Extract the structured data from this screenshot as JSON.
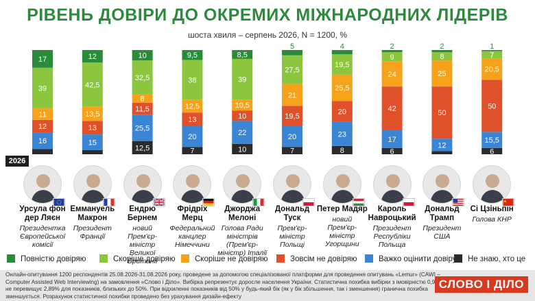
{
  "header": {
    "title": "РІВЕНЬ ДОВІРИ ДО ОКРЕМИХ МІЖНАРОДНИХ ЛІДЕРІВ",
    "subtitle": "шоста хвиля – серпень 2026, N = 1200, %",
    "year_badge": "2026"
  },
  "chart_data": {
    "type": "bar",
    "stacked": true,
    "ylim": [
      0,
      100
    ],
    "categories": [
      "Урсула фон дер Ляєн",
      "Еммануель Макрон",
      "Ендрю Бернем",
      "Фрідріх Мерц",
      "Джорджа Мелоні",
      "Дональд Туск",
      "Петер Мадяр",
      "Кароль Навроцький",
      "Дональд Трамп",
      "Сі Цзіньпін"
    ],
    "series": [
      {
        "name": "Не знаю, хто це",
        "color": "#2b2b2b",
        "values": [
          5,
          4,
          12.5,
          7,
          10,
          7,
          8,
          6,
          3,
          6
        ],
        "labels": [
          "5",
          "4",
          "12,5",
          "7",
          "10",
          "7",
          "8",
          "6",
          "3",
          "6"
        ]
      },
      {
        "name": "Важко оцінити довіру",
        "color": "#3a86d4",
        "values": [
          16,
          15,
          25.5,
          20,
          22,
          20,
          23,
          17,
          12,
          15.5
        ],
        "labels": [
          "16",
          "15",
          "25,5",
          "20",
          "22",
          "20",
          "23",
          "17",
          "12",
          "15,5"
        ]
      },
      {
        "name": "Зовсім не довіряю",
        "color": "#e0502a",
        "values": [
          12,
          13,
          11.5,
          13,
          10,
          19.5,
          20,
          42,
          50,
          50
        ],
        "labels": [
          "12",
          "13",
          "11,5",
          "13",
          "10",
          "19,5",
          "20",
          "42",
          "50",
          "50"
        ]
      },
      {
        "name": "Скоріше не довіряю",
        "color": "#f7a21b",
        "values": [
          11,
          13.5,
          8,
          12.5,
          10.5,
          21,
          25.5,
          24,
          25,
          20.5
        ],
        "labels": [
          "11",
          "13,5",
          "8",
          "12,5",
          "10,5",
          "21",
          "25,5",
          "24",
          "25",
          "20,5"
        ]
      },
      {
        "name": "Скоріше довіряю",
        "color": "#8cc63f",
        "values": [
          39,
          42.5,
          32.5,
          38,
          39,
          27.5,
          19.5,
          9,
          8,
          7
        ],
        "labels": [
          "39",
          "42,5",
          "32,5",
          "38",
          "39",
          "27,5",
          "19,5",
          "9",
          "8",
          "7"
        ]
      },
      {
        "name": "Повністю довіряю",
        "color": "#2a8b3a",
        "values": [
          17,
          12,
          10,
          9.5,
          8.5,
          5,
          4,
          2,
          2,
          1
        ],
        "labels": [
          "17",
          "12",
          "10",
          "9,5",
          "8,5",
          "5",
          "4",
          "2",
          "2",
          "1"
        ]
      }
    ]
  },
  "leaders": [
    {
      "name": "Урсула фон дер Ляєн",
      "role": "Президентка Європейської комісії",
      "flag": "eu"
    },
    {
      "name": "Еммануель Макрон",
      "role": "Президент Франції",
      "flag": "fr"
    },
    {
      "name": "Ендрю Бернем",
      "role": "новий Прем'єр-міністр Великої Британії",
      "flag": "gb"
    },
    {
      "name": "Фрідріх Мерц",
      "role": "Федеральний канцлер Німеччини",
      "flag": "de"
    },
    {
      "name": "Джорджа Мелоні",
      "role": "Голова Ради міністрів (Прем'єр-міністр) Італії",
      "flag": "it"
    },
    {
      "name": "Дональд Туск",
      "role": "Прем'єр-міністр Польщі",
      "flag": "pl"
    },
    {
      "name": "Петер Мадяр",
      "role": "новий Прем'єр-міністр Угорщини",
      "flag": "hu"
    },
    {
      "name": "Кароль Навроцький",
      "role": "Президент Республіки Польща",
      "flag": "pl"
    },
    {
      "name": "Дональд Трамп",
      "role": "Президент США",
      "flag": "us"
    },
    {
      "name": "Сі Цзіньпін",
      "role": "Голова КНР",
      "flag": "cn"
    }
  ],
  "legend": [
    {
      "label": "Повністю довіряю",
      "color": "#2a8b3a"
    },
    {
      "label": "Скоріше довіряю",
      "color": "#8cc63f"
    },
    {
      "label": "Скоріше не довіряю",
      "color": "#f7a21b"
    },
    {
      "label": "Зовсім не довіряю",
      "color": "#e0502a"
    },
    {
      "label": "Важко оцінити довіру",
      "color": "#3a86d4"
    },
    {
      "label": "Не знаю, хто це",
      "color": "#2b2b2b"
    }
  ],
  "footer": {
    "note": "Онлайн-опитування 1200 респондентів 25.08.2026-31.08.2026 року, проведене за допомогою спеціалізованої платформи для проведення опитувань «Lemur» (CAWI – Computer Assisted Web Interviewing) на замовлення «Слово і Діло». Вибірка репрезентує доросле населення України. Статистична похибка вибірки з імовірністю 0,95 не перевищує 2,89% для показників, близьких до 50%. При відхиленні показників від 50% у будь-який бік (як у бік збільшення, так і зменшення) гранична похибка зменшується. Розрахунок статистичної похибки проведено без урахування дизайн-ефекту",
    "logo": "СЛОВО І ДІЛО"
  }
}
